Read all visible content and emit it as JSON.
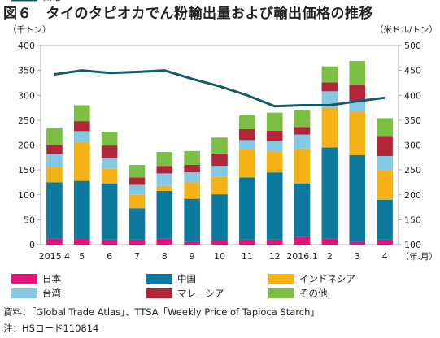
{
  "figure": {
    "title": "図６　タイのタピオカでん粉輸出量および輸出価格の推移",
    "source": "資料：「Global Trade Atlas」、TTSA「Weekly Price of  Tapioca Starch」",
    "note": "注：HSコード110814"
  },
  "chart_data": {
    "type": "bar",
    "stacked": true,
    "categories": [
      "2015.4",
      "5",
      "6",
      "7",
      "8",
      "9",
      "10",
      "11",
      "12",
      "2016.1",
      "2",
      "3",
      "4"
    ],
    "x_unit": "（年.月）",
    "y_left": {
      "unit": "（千トン）",
      "range": [
        0,
        400
      ],
      "ticks": [
        0,
        50,
        100,
        150,
        200,
        250,
        300,
        350,
        400
      ]
    },
    "y_right": {
      "unit": "（米ドル/トン）",
      "range": [
        100,
        500
      ],
      "ticks": [
        100,
        150,
        200,
        250,
        300,
        350,
        400,
        450,
        500
      ]
    },
    "grid": false,
    "legend": "bottom",
    "series": [
      {
        "name": "日本",
        "color": "#e0157a",
        "values": [
          12,
          13,
          10,
          10,
          12,
          5,
          8,
          10,
          10,
          15,
          12,
          5,
          10
        ]
      },
      {
        "name": "中国",
        "color": "#0b7a9e",
        "values": [
          113,
          115,
          113,
          63,
          96,
          87,
          93,
          125,
          135,
          108,
          183,
          175,
          80
        ]
      },
      {
        "name": "インドネシア",
        "color": "#f5b216",
        "values": [
          30,
          78,
          30,
          27,
          10,
          33,
          35,
          57,
          42,
          70,
          80,
          87,
          60
        ]
      },
      {
        "name": "台湾",
        "color": "#84c8e4",
        "values": [
          27,
          22,
          21,
          20,
          25,
          20,
          22,
          18,
          22,
          28,
          33,
          22,
          28
        ]
      },
      {
        "name": "マレーシア",
        "color": "#b3263a",
        "values": [
          18,
          20,
          25,
          15,
          15,
          15,
          25,
          22,
          20,
          15,
          18,
          32,
          40
        ]
      },
      {
        "name": "その他",
        "color": "#7bbf45",
        "values": [
          35,
          32,
          28,
          25,
          28,
          28,
          32,
          28,
          36,
          35,
          32,
          48,
          36
        ]
      },
      {
        "name": "価格",
        "color": "#125b6b",
        "type": "line",
        "axis": "right",
        "values": [
          442,
          450,
          445,
          447,
          450,
          433,
          418,
          400,
          378,
          380,
          380,
          388,
          395
        ]
      }
    ]
  }
}
